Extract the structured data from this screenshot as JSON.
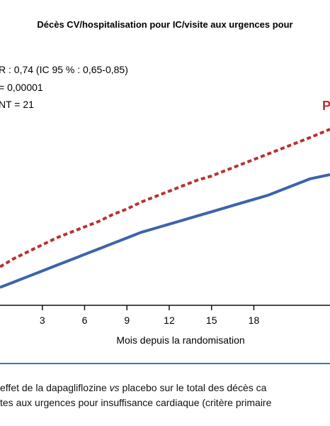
{
  "chart_data": {
    "type": "line",
    "title": "Décès CV/hospitalisation pour IC/visite aux urgences pour",
    "xlabel": "Mois depuis la randomisation",
    "ylabel": "",
    "xticks": [
      "3",
      "6",
      "9",
      "12",
      "15",
      "18"
    ],
    "xlim": [
      0,
      23.4
    ],
    "ylim": [
      0,
      16
    ],
    "stats": [
      "R : 0,74 (IC 95 % : 0,65-0,85)",
      "= 0,00001",
      "NT = 21"
    ],
    "series_label_visible": "P",
    "series": [
      {
        "name": "Placebo",
        "color": "#b8312f",
        "style": "dashed",
        "x": [
          0,
          1,
          2,
          3,
          4,
          5,
          6,
          7,
          8,
          9,
          10,
          11,
          12,
          13,
          14,
          15,
          16,
          17,
          18,
          19,
          20,
          21,
          22,
          23.4
        ],
        "y": [
          2.8,
          3.4,
          3.9,
          4.4,
          4.9,
          5.3,
          5.7,
          6.1,
          6.6,
          7.0,
          7.5,
          7.9,
          8.3,
          8.7,
          9.1,
          9.4,
          9.8,
          10.2,
          10.6,
          11.0,
          11.4,
          11.8,
          12.2,
          12.8
        ]
      },
      {
        "name": "Dapagliflozine",
        "color": "#3d63ab",
        "style": "solid",
        "x": [
          0,
          1,
          2,
          3,
          4,
          5,
          6,
          7,
          8,
          9,
          10,
          11,
          12,
          13,
          14,
          15,
          16,
          17,
          18,
          19,
          20,
          21,
          22,
          23.4
        ],
        "y": [
          1.3,
          1.7,
          2.1,
          2.5,
          2.9,
          3.3,
          3.7,
          4.1,
          4.5,
          4.9,
          5.3,
          5.6,
          5.9,
          6.2,
          6.5,
          6.8,
          7.1,
          7.4,
          7.7,
          8.0,
          8.4,
          8.8,
          9.2,
          9.5
        ]
      }
    ]
  },
  "caption": {
    "line1_start": "effet de la dapagliflozine ",
    "line1_italic": "vs",
    "line1_end": " placebo sur le total des décès ca",
    "line2": "tes aux urgences pour insuffisance cardiaque (critère primaire"
  },
  "colors": {
    "placebo": "#b8312f",
    "dapagliflozine": "#3d63ab",
    "rule": "#2f7fb8"
  }
}
